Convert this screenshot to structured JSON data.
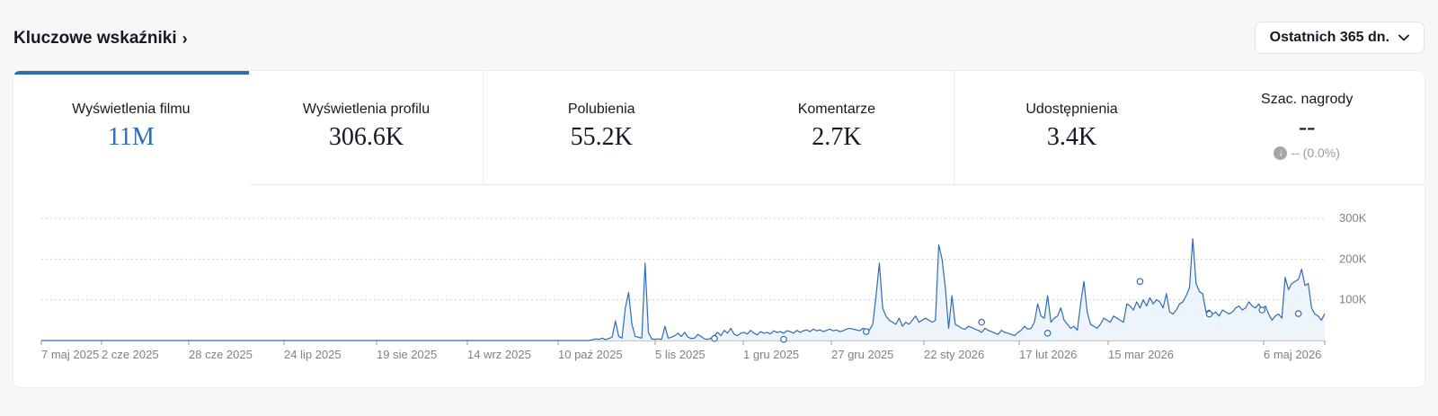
{
  "header": {
    "title": "Kluczowe wskaźniki",
    "range_label": "Ostatnich 365 dn."
  },
  "metrics": [
    {
      "label": "Wyświetlenia filmu",
      "value": "11M"
    },
    {
      "label": "Wyświetlenia profilu",
      "value": "306.6K"
    },
    {
      "label": "Polubienia",
      "value": "55.2K"
    },
    {
      "label": "Komentarze",
      "value": "2.7K"
    },
    {
      "label": "Udostępnienia",
      "value": "3.4K"
    },
    {
      "label": "Szac. nagrody",
      "value": "--",
      "delta": "-- (0.0%)"
    }
  ],
  "colors": {
    "accent": "#2e6db4",
    "grid": "#cfcfd4",
    "area": "#e9f1fa"
  },
  "chart_data": {
    "type": "area",
    "x_tick_labels": [
      "7 maj 2025",
      "2 cze 2025",
      "28 cze 2025",
      "24 lip 2025",
      "19 sie 2025",
      "14 wrz 2025",
      "10 paź 2025",
      "5 lis 2025",
      "1 gru 2025",
      "27 gru 2025",
      "22 sty 2026",
      "17 lut 2026",
      "15 mar 2026",
      "6 maj 2026"
    ],
    "y_tick_labels": [
      "100K",
      "200K",
      "300K"
    ],
    "ylim": [
      0,
      300000
    ],
    "grid": true,
    "series": [
      {
        "values": [
          0,
          0,
          0,
          0,
          0,
          0,
          0,
          0,
          0,
          0,
          0,
          0,
          0,
          0,
          0,
          0,
          0,
          0,
          0,
          0,
          0,
          0,
          0,
          0,
          0,
          0,
          0,
          0,
          0,
          0,
          0,
          0,
          0,
          0,
          0,
          0,
          0,
          0,
          0,
          0,
          0,
          0,
          0,
          0,
          0,
          0,
          0,
          0,
          0,
          0,
          0,
          0,
          0,
          0,
          0,
          0,
          0,
          0,
          0,
          0,
          0,
          0,
          0,
          0,
          0,
          0,
          0,
          0,
          0,
          0,
          0,
          0,
          0,
          0,
          0,
          0,
          0,
          0,
          0,
          0,
          0,
          0,
          0,
          0,
          0,
          0,
          0,
          0,
          0,
          0,
          0,
          0,
          0,
          0,
          0,
          0,
          0,
          0,
          0,
          0,
          0,
          0,
          0,
          0,
          0,
          0,
          0,
          0,
          0,
          0,
          0,
          0,
          0,
          0,
          0,
          0,
          0,
          0,
          0,
          0,
          0,
          0,
          0,
          0,
          0,
          0,
          0,
          0,
          0,
          0,
          0,
          0,
          0,
          0,
          0,
          0,
          0,
          0,
          0,
          0,
          0,
          0,
          0,
          0,
          0,
          0,
          0,
          0,
          0,
          0,
          0,
          0,
          0,
          0,
          0,
          0,
          0,
          0,
          0,
          0,
          0,
          0,
          0,
          0,
          0,
          0,
          0,
          2000,
          4000,
          3000,
          6000,
          2000,
          5000,
          8000,
          48000,
          10000,
          6000,
          80000,
          118000,
          40000,
          10000,
          8000,
          6000,
          190000,
          20000,
          4000,
          3000,
          4000,
          3000,
          35000,
          6000,
          8000,
          12000,
          18000,
          10000,
          20000,
          8000,
          5000,
          6000,
          15000,
          10000,
          4000,
          3000,
          6000,
          12000,
          20000,
          12000,
          25000,
          18000,
          30000,
          15000,
          12000,
          18000,
          20000,
          16000,
          25000,
          18000,
          14000,
          22000,
          18000,
          20000,
          16000,
          24000,
          20000,
          22000,
          18000,
          24000,
          22000,
          18000,
          25000,
          20000,
          24000,
          26000,
          22000,
          28000,
          24000,
          26000,
          22000,
          25000,
          28000,
          24000,
          26000,
          22000,
          24000,
          28000,
          30000,
          28000,
          26000,
          24000,
          30000,
          28000,
          26000,
          40000,
          110000,
          190000,
          80000,
          60000,
          50000,
          45000,
          40000,
          55000,
          35000,
          45000,
          40000,
          50000,
          60000,
          45000,
          50000,
          55000,
          50000,
          45000,
          50000,
          235000,
          200000,
          130000,
          30000,
          110000,
          40000,
          35000,
          30000,
          28000,
          35000,
          32000,
          28000,
          25000,
          20000,
          30000,
          25000,
          22000,
          18000,
          15000,
          25000,
          20000,
          18000,
          15000,
          12000,
          20000,
          25000,
          35000,
          28000,
          30000,
          45000,
          90000,
          60000,
          55000,
          110000,
          45000,
          55000,
          60000,
          80000,
          50000,
          40000,
          30000,
          35000,
          25000,
          90000,
          145000,
          70000,
          40000,
          35000,
          30000,
          40000,
          55000,
          50000,
          45000,
          60000,
          55000,
          50000,
          45000,
          90000,
          85000,
          75000,
          95000,
          80000,
          100000,
          85000,
          105000,
          90000,
          100000,
          95000,
          80000,
          115000,
          70000,
          65000,
          75000,
          90000,
          95000,
          110000,
          130000,
          250000,
          140000,
          120000,
          115000,
          70000,
          75000,
          65000,
          70000,
          60000,
          75000,
          70000,
          65000,
          70000,
          80000,
          85000,
          75000,
          80000,
          95000,
          85000,
          80000,
          90000,
          75000,
          85000,
          65000,
          50000,
          60000,
          65000,
          55000,
          155000,
          125000,
          140000,
          145000,
          150000,
          175000,
          135000,
          140000,
          80000,
          65000,
          60000,
          50000,
          66000
        ],
        "markers": [
          {
            "x_index": 204,
            "y": 5000
          },
          {
            "x_index": 225,
            "y": 3000
          },
          {
            "x_index": 250,
            "y": 22000
          },
          {
            "x_index": 285,
            "y": 45000
          },
          {
            "x_index": 305,
            "y": 18000
          },
          {
            "x_index": 333,
            "y": 145000
          },
          {
            "x_index": 354,
            "y": 65000
          },
          {
            "x_index": 370,
            "y": 75000
          },
          {
            "x_index": 381,
            "y": 66000
          }
        ]
      }
    ]
  }
}
